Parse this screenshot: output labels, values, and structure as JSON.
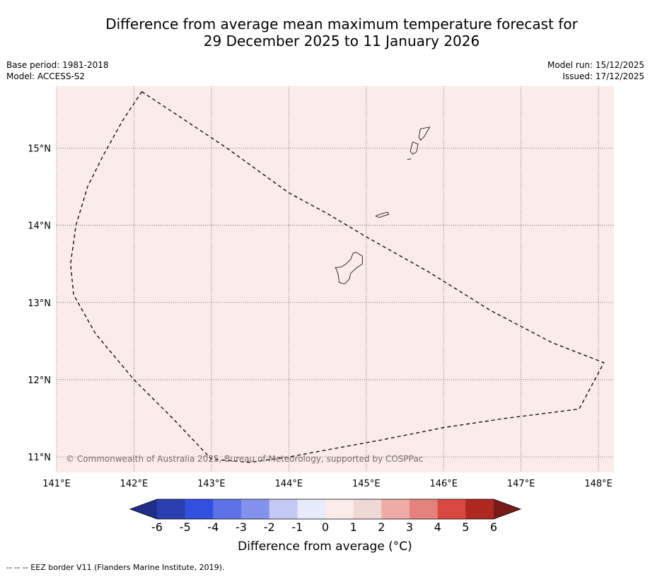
{
  "title_line1": "Difference from average mean maximum temperature forecast for",
  "title_line2": "29 December 2025 to 11 January 2026",
  "meta": {
    "base_period": "Base period: 1981-2018",
    "model": "Model: ACCESS-S2",
    "model_run": "Model run: 15/12/2025",
    "issued": "Issued: 17/12/2025"
  },
  "map": {
    "lon_labels": [
      "141°E",
      "142°E",
      "143°E",
      "144°E",
      "145°E",
      "146°E",
      "147°E",
      "148°E"
    ],
    "lon_values": [
      141,
      142,
      143,
      144,
      145,
      146,
      147,
      148
    ],
    "lat_labels": [
      "15°N",
      "14°N",
      "13°N",
      "12°N",
      "11°N"
    ],
    "lat_values": [
      15,
      14,
      13,
      12,
      11
    ],
    "lon_range": [
      141,
      148.2
    ],
    "lat_range": [
      10.8,
      15.8
    ],
    "fill_color": "#fbebe9",
    "copyright": "© Commonwealth of Australia 2025, Bureau of Meteorology, supported by COSPPac",
    "eez_border": [
      [
        142.1,
        15.73
      ],
      [
        142.6,
        15.4
      ],
      [
        143.2,
        15.0
      ],
      [
        144.0,
        14.42
      ],
      [
        144.5,
        14.15
      ],
      [
        145.0,
        13.85
      ],
      [
        145.8,
        13.4
      ],
      [
        146.6,
        12.9
      ],
      [
        147.4,
        12.48
      ],
      [
        148.07,
        12.22
      ],
      [
        147.75,
        11.62
      ],
      [
        146.8,
        11.5
      ],
      [
        146.0,
        11.38
      ],
      [
        145.2,
        11.22
      ],
      [
        144.0,
        11.0
      ],
      [
        143.5,
        10.93
      ],
      [
        143.0,
        10.97
      ],
      [
        142.5,
        11.5
      ],
      [
        142.0,
        12.0
      ],
      [
        141.5,
        12.6
      ],
      [
        141.22,
        13.1
      ],
      [
        141.18,
        13.5
      ],
      [
        141.25,
        14.0
      ],
      [
        141.4,
        14.5
      ],
      [
        141.6,
        14.9
      ],
      [
        141.85,
        15.35
      ],
      [
        142.1,
        15.73
      ]
    ],
    "islands": [
      {
        "name": "Guam",
        "coords": [
          [
            144.87,
            13.65
          ],
          [
            144.95,
            13.6
          ],
          [
            144.95,
            13.5
          ],
          [
            144.88,
            13.45
          ],
          [
            144.8,
            13.38
          ],
          [
            144.78,
            13.3
          ],
          [
            144.72,
            13.24
          ],
          [
            144.65,
            13.26
          ],
          [
            144.64,
            13.35
          ],
          [
            144.62,
            13.42
          ],
          [
            144.6,
            13.45
          ],
          [
            144.68,
            13.46
          ],
          [
            144.74,
            13.5
          ],
          [
            144.8,
            13.56
          ],
          [
            144.83,
            13.64
          ],
          [
            144.87,
            13.65
          ]
        ]
      },
      {
        "name": "Rota",
        "coords": [
          [
            145.12,
            14.12
          ],
          [
            145.2,
            14.15
          ],
          [
            145.28,
            14.17
          ],
          [
            145.29,
            14.14
          ],
          [
            145.22,
            14.12
          ],
          [
            145.17,
            14.1
          ],
          [
            145.12,
            14.12
          ]
        ]
      },
      {
        "name": "Tinian",
        "coords": [
          [
            145.6,
            15.08
          ],
          [
            145.67,
            15.05
          ],
          [
            145.65,
            14.95
          ],
          [
            145.6,
            14.92
          ],
          [
            145.57,
            14.96
          ],
          [
            145.6,
            15.08
          ]
        ]
      },
      {
        "name": "Saipan",
        "coords": [
          [
            145.7,
            15.25
          ],
          [
            145.82,
            15.27
          ],
          [
            145.75,
            15.15
          ],
          [
            145.7,
            15.1
          ],
          [
            145.68,
            15.15
          ],
          [
            145.7,
            15.25
          ]
        ]
      },
      {
        "name": "Aguijan",
        "coords": [
          [
            145.53,
            14.85
          ],
          [
            145.58,
            14.86
          ]
        ]
      }
    ]
  },
  "colorbar": {
    "label": "Difference from average (°C)",
    "tick_labels": [
      "-6",
      "-5",
      "-4",
      "-3",
      "-2",
      "-1",
      "0",
      "1",
      "2",
      "3",
      "4",
      "5",
      "6"
    ],
    "colors": [
      "#1e2e8a",
      "#2a3fb0",
      "#3150e0",
      "#5c72e6",
      "#8392ec",
      "#c3c8f4",
      "#e8ebfb",
      "#fbebe9",
      "#f0d8d5",
      "#efaba6",
      "#e5827d",
      "#d94840",
      "#ae2820",
      "#7a1a18"
    ]
  },
  "footnote": "--  --  -- EEZ border V11 (Flanders Marine Institute, 2019)."
}
